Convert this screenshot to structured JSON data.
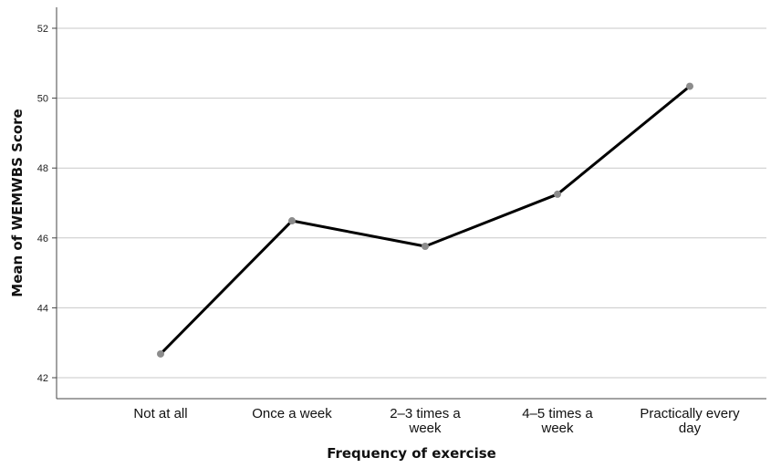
{
  "chart_data": {
    "type": "line",
    "title": "",
    "xlabel": "Frequency of exercise",
    "ylabel": "Mean of WEMWBS Score",
    "categories": [
      [
        "Not at all"
      ],
      [
        "Once a week"
      ],
      [
        "2–3 times a",
        "week"
      ],
      [
        "4–5 times a",
        "week"
      ],
      [
        "Practically every",
        "day"
      ]
    ],
    "values": [
      42.68,
      46.49,
      45.76,
      47.25,
      50.34
    ],
    "yticks": [
      "42",
      "44",
      "46",
      "48",
      "50",
      "52"
    ],
    "ylim": [
      41.4,
      52.6
    ],
    "grid": true,
    "colors": {
      "line": "#000000",
      "marker": "#8c8c8c",
      "grid": "#c8c8c8",
      "axis": "#444444"
    }
  }
}
